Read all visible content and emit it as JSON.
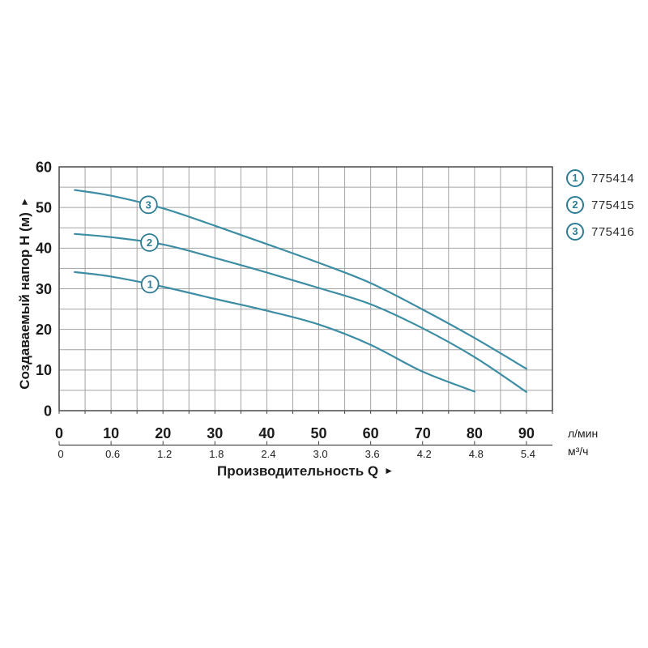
{
  "chart_data": {
    "type": "line",
    "title": "",
    "ylabel": "Создаваемый напор H (м)",
    "xlabel": "Производительность Q",
    "x_unit_primary": "л/мин",
    "x_unit_secondary": "м³/ч",
    "xlim": [
      0,
      95
    ],
    "ylim": [
      0,
      60
    ],
    "grid": "minor gridlines every 5 units on both axes",
    "legend_position": "top-right outside plot",
    "y_ticks": [
      0,
      10,
      20,
      30,
      40,
      50,
      60
    ],
    "x_ticks_lmin": [
      0,
      10,
      20,
      30,
      40,
      50,
      60,
      70,
      80,
      90
    ],
    "x_ticks_m3h": [
      "0",
      "0.6",
      "1.2",
      "1.8",
      "2.4",
      "3.0",
      "3.6",
      "4.2",
      "4.8",
      "5.4"
    ],
    "series": [
      {
        "name": "775414",
        "marker": "1",
        "marker_q": 17.5,
        "points": [
          [
            3,
            34.1
          ],
          [
            10,
            33
          ],
          [
            20,
            30.5
          ],
          [
            30,
            27.5
          ],
          [
            40,
            24.6
          ],
          [
            50,
            21.2
          ],
          [
            60,
            16.2
          ],
          [
            70,
            9.6
          ],
          [
            80,
            4.7
          ]
        ]
      },
      {
        "name": "775415",
        "marker": "2",
        "marker_q": 17.4,
        "points": [
          [
            3,
            43.5
          ],
          [
            10,
            42.7
          ],
          [
            20,
            40.9
          ],
          [
            30,
            37.6
          ],
          [
            40,
            34
          ],
          [
            50,
            30.2
          ],
          [
            60,
            26.2
          ],
          [
            70,
            20.3
          ],
          [
            80,
            13.2
          ],
          [
            90,
            4.6
          ]
        ]
      },
      {
        "name": "775416",
        "marker": "3",
        "marker_q": 17.2,
        "points": [
          [
            3,
            54.3
          ],
          [
            10,
            52.9
          ],
          [
            20,
            49.8
          ],
          [
            30,
            45.5
          ],
          [
            40,
            41
          ],
          [
            50,
            36.4
          ],
          [
            60,
            31.4
          ],
          [
            70,
            24.9
          ],
          [
            80,
            17.9
          ],
          [
            90,
            10.3
          ]
        ]
      }
    ]
  },
  "icons": {
    "axis_arrow": "►"
  },
  "colors": {
    "curve": "#3d8da4",
    "marker_ring": "#2e7d95",
    "grid": "#a3a3a3",
    "plot_border": "#4a4a4a",
    "text": "#1b1b1b",
    "legend_text": "#2b2b2b"
  }
}
